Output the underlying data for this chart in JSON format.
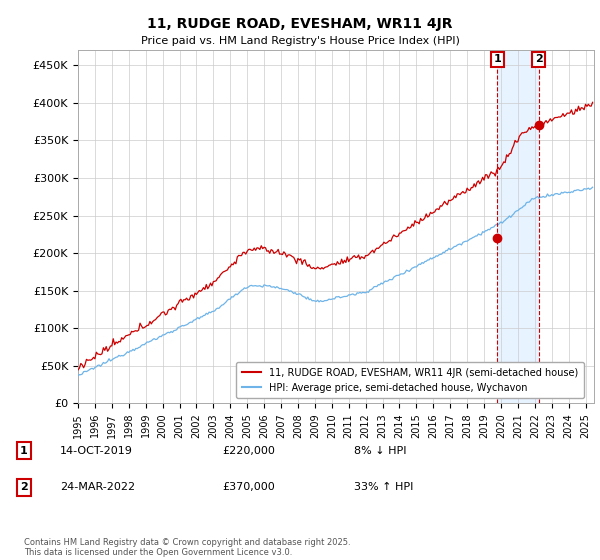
{
  "title": "11, RUDGE ROAD, EVESHAM, WR11 4JR",
  "subtitle": "Price paid vs. HM Land Registry's House Price Index (HPI)",
  "ylabel_ticks": [
    "£0",
    "£50K",
    "£100K",
    "£150K",
    "£200K",
    "£250K",
    "£300K",
    "£350K",
    "£400K",
    "£450K"
  ],
  "ytick_values": [
    0,
    50000,
    100000,
    150000,
    200000,
    250000,
    300000,
    350000,
    400000,
    450000
  ],
  "xlim_start": 1995.0,
  "xlim_end": 2025.5,
  "ylim": [
    0,
    470000
  ],
  "hpi_color": "#6eb4e8",
  "price_color": "#cc0000",
  "shade_color": "#ddeeff",
  "marker1_date": 2019.79,
  "marker1_price": 220000,
  "marker2_date": 2022.23,
  "marker2_price": 370000,
  "legend_line1": "11, RUDGE ROAD, EVESHAM, WR11 4JR (semi-detached house)",
  "legend_line2": "HPI: Average price, semi-detached house, Wychavon",
  "annotation1_label": "1",
  "annotation1_date": "14-OCT-2019",
  "annotation1_price": "£220,000",
  "annotation1_hpi": "8% ↓ HPI",
  "annotation2_label": "2",
  "annotation2_date": "24-MAR-2022",
  "annotation2_price": "£370,000",
  "annotation2_hpi": "33% ↑ HPI",
  "footer": "Contains HM Land Registry data © Crown copyright and database right 2025.\nThis data is licensed under the Open Government Licence v3.0.",
  "background_color": "#ffffff",
  "grid_color": "#cccccc"
}
